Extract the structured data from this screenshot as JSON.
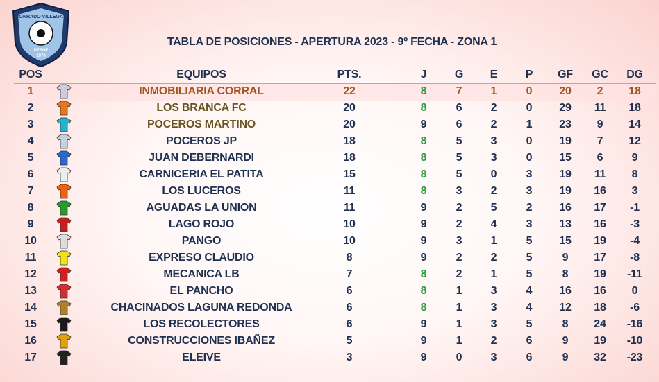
{
  "logo": {
    "name": "CONRADO VILLEGAS",
    "since": "DESDE",
    "year": "1970"
  },
  "header": {
    "title": "TABLA DE POSICIONES - APERTURA 2023 - 9º FECHA - ZONA 1"
  },
  "table": {
    "columns": [
      "POS",
      "EQUIPOS",
      "PTS.",
      "J",
      "G",
      "E",
      "P",
      "GF",
      "GC",
      "DG"
    ],
    "rows": [
      [
        1,
        "INMOBILIARIA CORRAL",
        22,
        8,
        7,
        1,
        0,
        20,
        2,
        18
      ],
      [
        2,
        "LOS BRANCA FC",
        20,
        8,
        6,
        2,
        0,
        29,
        11,
        18
      ],
      [
        3,
        "POCEROS MARTINO",
        20,
        9,
        6,
        2,
        1,
        23,
        9,
        14
      ],
      [
        4,
        "POCEROS JP",
        18,
        8,
        5,
        3,
        0,
        19,
        7,
        12
      ],
      [
        5,
        "JUAN DEBERNARDI",
        18,
        8,
        5,
        3,
        0,
        15,
        6,
        9
      ],
      [
        6,
        "CARNICERIA EL PATITA",
        15,
        8,
        5,
        0,
        3,
        19,
        11,
        8
      ],
      [
        7,
        "LOS LUCEROS",
        11,
        8,
        3,
        2,
        3,
        19,
        16,
        3
      ],
      [
        8,
        "AGUADAS LA UNION",
        11,
        9,
        2,
        5,
        2,
        16,
        17,
        -1
      ],
      [
        9,
        "LAGO ROJO",
        10,
        9,
        2,
        4,
        3,
        13,
        16,
        -3
      ],
      [
        10,
        "PANGO",
        10,
        9,
        3,
        1,
        5,
        15,
        19,
        -4
      ],
      [
        11,
        "EXPRESO CLAUDIO",
        8,
        9,
        2,
        2,
        5,
        9,
        17,
        -8
      ],
      [
        12,
        "MECANICA LB",
        7,
        8,
        2,
        1,
        5,
        8,
        19,
        -11
      ],
      [
        13,
        "EL PANCHO",
        6,
        8,
        1,
        3,
        4,
        16,
        16,
        0
      ],
      [
        14,
        "CHACINADOS LAGUNA REDONDA",
        6,
        8,
        1,
        3,
        4,
        12,
        18,
        -6
      ],
      [
        15,
        "LOS RECOLECTORES",
        6,
        9,
        1,
        3,
        5,
        8,
        24,
        -16
      ],
      [
        16,
        "CONSTRUCCIONES IBAÑEZ",
        5,
        9,
        1,
        2,
        6,
        9,
        19,
        -10
      ],
      [
        17,
        "ELEIVE",
        3,
        9,
        0,
        3,
        6,
        9,
        32,
        -23
      ]
    ]
  }
}
